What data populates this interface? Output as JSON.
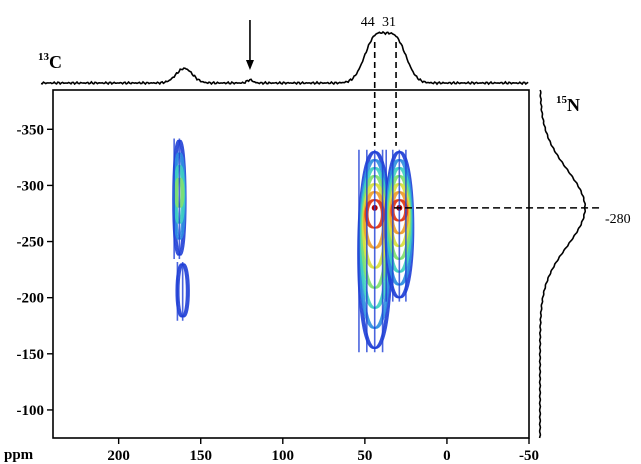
{
  "chart_data": {
    "type": "heatmap",
    "title": "",
    "xlabel": "ppm",
    "ylabel": "",
    "x_axis_nucleus": {
      "mass": "13",
      "symbol": "C"
    },
    "y_axis_nucleus": {
      "mass": "15",
      "symbol": "N"
    },
    "xlim": [
      240,
      -50
    ],
    "ylim": [
      -385,
      -75
    ],
    "x_ticks": [
      {
        "value": 200,
        "label": "200"
      },
      {
        "value": 150,
        "label": "150"
      },
      {
        "value": 100,
        "label": "100"
      },
      {
        "value": 50,
        "label": "50"
      },
      {
        "value": 0,
        "label": "0"
      },
      {
        "value": -50,
        "label": "-50"
      }
    ],
    "y_ticks": [
      {
        "value": -350,
        "label": "-350"
      },
      {
        "value": -300,
        "label": "-300"
      },
      {
        "value": -250,
        "label": "-250"
      },
      {
        "value": -200,
        "label": "-200"
      },
      {
        "value": -150,
        "label": "-150"
      },
      {
        "value": -100,
        "label": "-100"
      }
    ],
    "peak_labels": [
      {
        "value": 44,
        "label": "44"
      },
      {
        "value": 31,
        "label": "31"
      }
    ],
    "cross_peak": {
      "value": -280,
      "label": "-280"
    },
    "arrow_at": 120,
    "contour_colormap": [
      "#1f3fd6",
      "#2f8fe0",
      "#3fd0c0",
      "#7fe070",
      "#d8e040",
      "#f0a030",
      "#e03a1a"
    ],
    "signals": [
      {
        "x_center": 163,
        "x_width": 4,
        "y_min": -340,
        "y_max": -238,
        "y_peak": -295,
        "max_level": 4
      },
      {
        "x_center": 161,
        "x_width": 4,
        "y_min": -230,
        "y_max": -183,
        "y_peak": -205,
        "max_level": 1
      },
      {
        "x_center": 44,
        "x_width": 12,
        "y_min": -330,
        "y_max": -155,
        "y_peak": -280,
        "max_level": 7
      },
      {
        "x_center": 29,
        "x_width": 10,
        "y_min": -330,
        "y_max": -200,
        "y_peak": -280,
        "max_level": 7
      }
    ],
    "projections": {
      "carbon_peaks": [
        {
          "x": 160,
          "height": 0.28
        },
        {
          "x": 120,
          "height": 0.06
        },
        {
          "x": 44,
          "height": 0.82
        },
        {
          "x": 31,
          "height": 0.8
        }
      ],
      "nitrogen_peaks": [
        {
          "y": -280,
          "height": 0.9
        }
      ]
    }
  }
}
